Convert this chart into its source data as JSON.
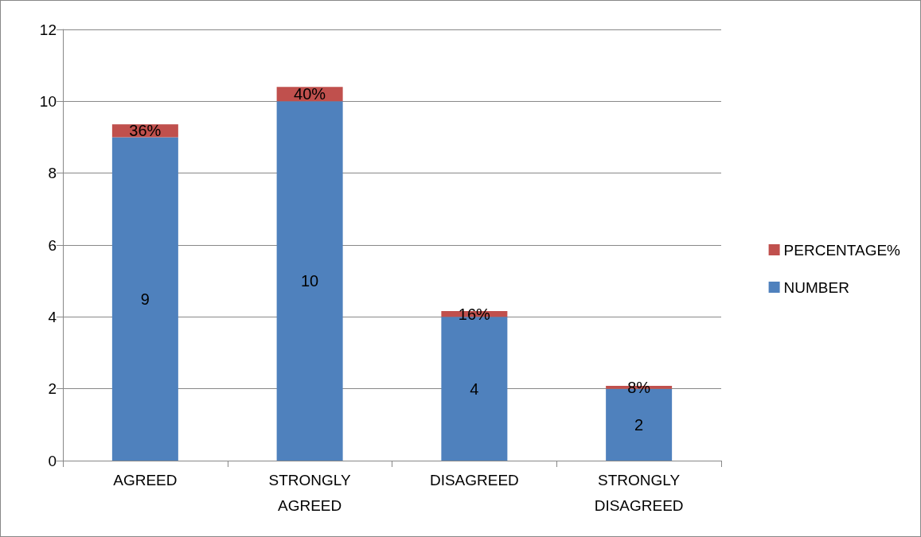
{
  "chart_data": {
    "type": "bar",
    "stacked": true,
    "categories": [
      "AGREED",
      "STRONGLY AGREED",
      "DISAGREED",
      "STRONGLY DISAGREED"
    ],
    "series": [
      {
        "name": "NUMBER",
        "color": "#4f81bd",
        "values": [
          9,
          10,
          4,
          2
        ],
        "value_labels": [
          "9",
          "10",
          "4",
          "2"
        ]
      },
      {
        "name": "PERCENTAGE%",
        "color": "#c0504d",
        "values": [
          0.36,
          0.4,
          0.16,
          0.08
        ],
        "value_labels": [
          "36%",
          "40%",
          "16%",
          "8%"
        ]
      }
    ],
    "ylim": [
      0,
      12
    ],
    "yticks": [
      0,
      2,
      4,
      6,
      8,
      10,
      12
    ],
    "grid": "y",
    "legend": "right"
  }
}
